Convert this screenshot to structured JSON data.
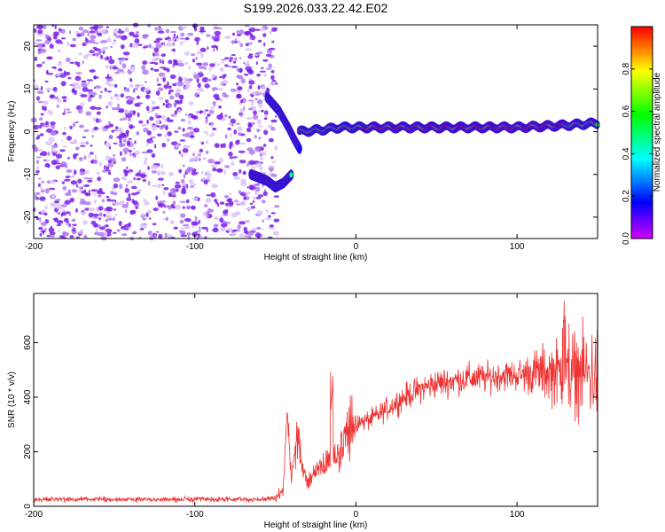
{
  "title": "S199.2026.033.22.42.E02",
  "chart_data": [
    {
      "type": "heatmap",
      "xlabel": "Height of straight line (km)",
      "ylabel": "Frequency (Hz)",
      "xlim": [
        -200,
        150
      ],
      "ylim": [
        -25,
        25
      ],
      "xticks": [
        -200,
        -100,
        0,
        100
      ],
      "yticks": [
        -20,
        -10,
        0,
        10,
        20
      ],
      "colorbar": {
        "label": "Normalized spectral amplitude",
        "range": [
          0,
          1
        ],
        "ticks": [
          0.0,
          0.2,
          0.4,
          0.6,
          0.8
        ]
      },
      "features": [
        {
          "region": "noise",
          "x_range": [
            -200,
            -57
          ],
          "freq_range": [
            -25,
            25
          ]
        },
        {
          "region": "lower branch",
          "x": [
            -65,
            -55,
            -50,
            -45,
            -40
          ],
          "freq": [
            -10,
            -11.5,
            -13,
            -12,
            -10
          ]
        },
        {
          "region": "upper branch",
          "x": [
            -55,
            -48,
            -42,
            -38,
            -35
          ],
          "freq": [
            8,
            5,
            1,
            -2,
            -4
          ]
        },
        {
          "region": "main line",
          "x": [
            -35,
            -20,
            -10,
            0,
            50,
            100,
            130,
            150
          ],
          "freq": [
            0,
            0.5,
            1,
            1,
            1,
            1,
            1.5,
            2
          ]
        }
      ]
    },
    {
      "type": "line",
      "xlabel": "Height of straight line (km)",
      "ylabel": "SNR (10 * v/v)",
      "xlim": [
        -200,
        150
      ],
      "ylim": [
        0,
        780
      ],
      "xticks": [
        -200,
        -100,
        0,
        100
      ],
      "yticks": [
        0,
        200,
        400,
        600
      ],
      "series": [
        {
          "color": "#ee3333",
          "x": [
            -200,
            -150,
            -100,
            -60,
            -50,
            -45,
            -42,
            -40,
            -36,
            -33,
            -30,
            -25,
            -20,
            -15,
            -10,
            -5,
            0,
            10,
            20,
            30,
            40,
            50,
            60,
            70,
            80,
            90,
            100,
            110,
            120,
            130,
            140,
            150
          ],
          "y": [
            25,
            25,
            25,
            25,
            30,
            60,
            170,
            110,
            260,
            130,
            80,
            140,
            150,
            180,
            210,
            270,
            300,
            320,
            360,
            400,
            430,
            450,
            460,
            470,
            470,
            480,
            480,
            490,
            490,
            490,
            490,
            480
          ]
        }
      ]
    }
  ]
}
